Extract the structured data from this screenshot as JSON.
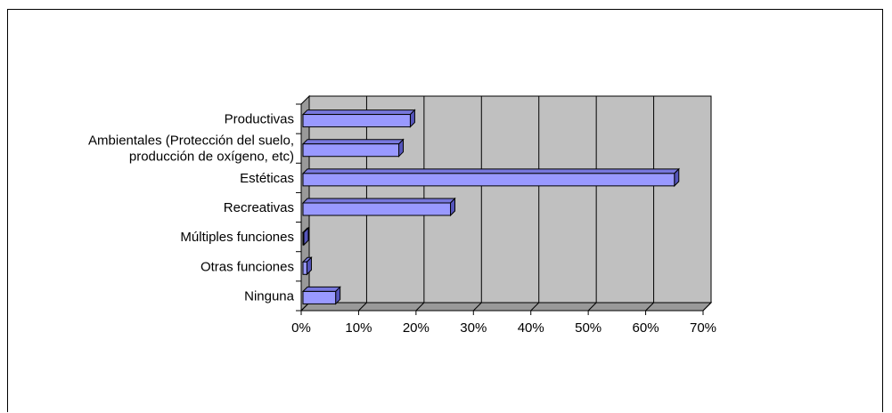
{
  "chart_data": {
    "type": "bar",
    "orientation": "horizontal",
    "style": "3d-clustered",
    "title": "",
    "xlabel": "",
    "ylabel": "",
    "categories": [
      [
        "Productivas"
      ],
      [
        "Ambientales (Protección del suelo,",
        "producción de oxígeno, etc)"
      ],
      [
        "Estéticas"
      ],
      [
        "Recreativas"
      ],
      [
        "Múltiples funciones"
      ],
      [
        "Otras funciones"
      ],
      [
        "Ninguna"
      ]
    ],
    "values": [
      0.19,
      0.17,
      0.65,
      0.26,
      0.0,
      0.01,
      0.06
    ],
    "xlim": [
      0,
      0.7
    ],
    "xticks": [
      "0%",
      "10%",
      "20%",
      "30%",
      "40%",
      "50%",
      "60%",
      "70%"
    ],
    "grid": true,
    "legend": "none",
    "colors": {
      "bar_face": "#9999ff",
      "bar_top": "#7777dd",
      "bar_side": "#5555bb",
      "plot_wall": "#c0c0c0",
      "floor": "#999999",
      "gridline": "#000000"
    }
  }
}
